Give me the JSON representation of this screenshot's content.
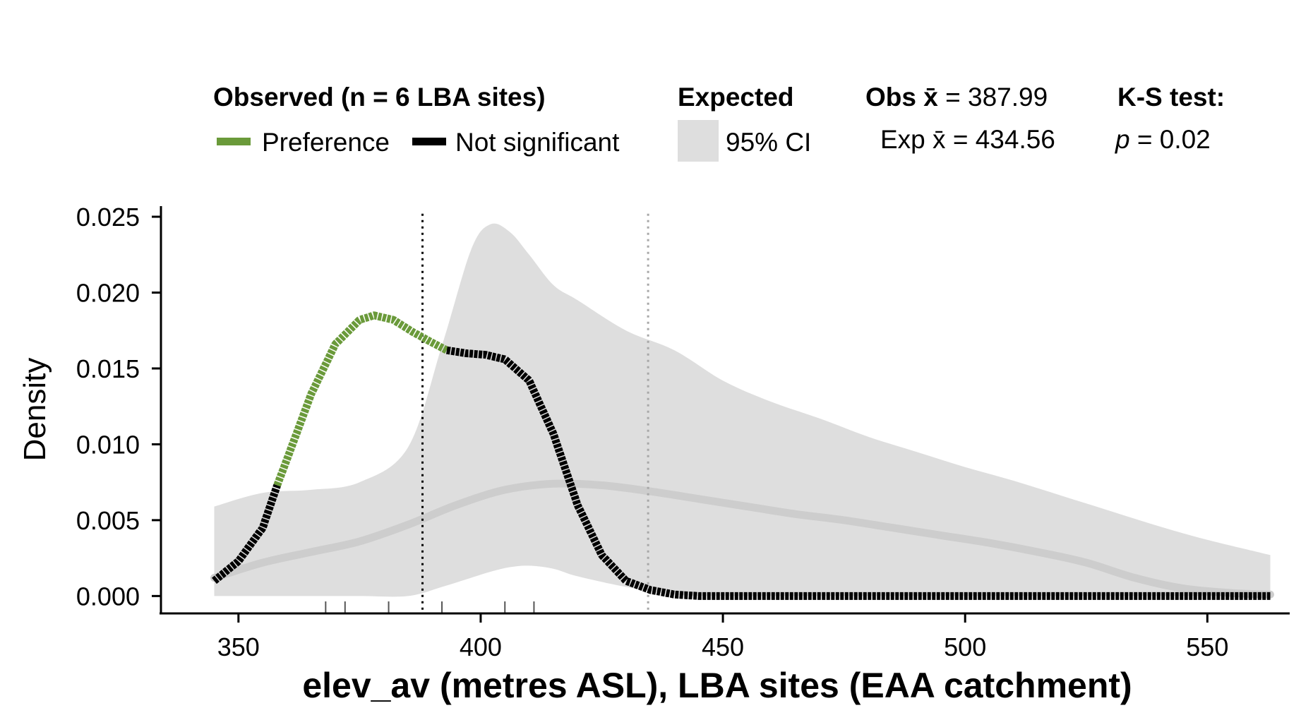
{
  "legend": {
    "observed_title": "Observed (n = 6 LBA sites)",
    "preference_label": "Preference",
    "not_significant_label": "Not significant",
    "expected_title": "Expected",
    "ci_label": "95% CI",
    "obs_mean_prefix": "Obs ",
    "obs_mean_symbol": "x̄",
    "obs_mean_value": " = 387.99",
    "exp_mean_prefix": "Exp ",
    "exp_mean_symbol": "x̄",
    "exp_mean_value": " = 434.56",
    "ks_title": "K-S test:",
    "p_symbol": "p",
    "p_value": " = 0.02"
  },
  "colors": {
    "preference": "#6a9a3a",
    "not_significant": "#000000",
    "ci_fill": "#dedede",
    "expected_line": "#cdcdcd",
    "obs_mean_line": "#000000",
    "exp_mean_line": "#a8a8a8"
  },
  "chart_data": {
    "type": "area",
    "xlabel": "elev_av (metres ASL), LBA sites (EAA catchment)",
    "ylabel": "Density",
    "xlim": [
      334,
      567
    ],
    "ylim": [
      -0.0011,
      0.0257
    ],
    "x_ticks": [
      350,
      400,
      450,
      500,
      550
    ],
    "x_tick_labels": [
      "350",
      "400",
      "450",
      "500",
      "550"
    ],
    "y_ticks": [
      0,
      0.005,
      0.01,
      0.015,
      0.02,
      0.025
    ],
    "y_tick_labels": [
      "0.000",
      "0.005",
      "0.010",
      "0.015",
      "0.020",
      "0.025"
    ],
    "obs_mean": 387.99,
    "exp_mean": 434.56,
    "rug": [
      368,
      372,
      381,
      392,
      405,
      411
    ],
    "ci": {
      "x": [
        345,
        355,
        365,
        375,
        385,
        392,
        398,
        402,
        406,
        410,
        415,
        420,
        430,
        440,
        450,
        460,
        470,
        480,
        490,
        500,
        510,
        520,
        530,
        540,
        550,
        563
      ],
      "upper": [
        0.0059,
        0.0068,
        0.007,
        0.0075,
        0.0098,
        0.0165,
        0.0228,
        0.0245,
        0.024,
        0.0225,
        0.0205,
        0.0195,
        0.0175,
        0.0162,
        0.0142,
        0.0128,
        0.0117,
        0.0105,
        0.0095,
        0.0085,
        0.0076,
        0.0066,
        0.0056,
        0.0046,
        0.0037,
        0.0027
      ],
      "lower": [
        0.0,
        0.0,
        0.0,
        0.0,
        0.0,
        0.0006,
        0.0012,
        0.0016,
        0.0019,
        0.002,
        0.0018,
        0.0013,
        0.0006,
        0.0001,
        0.0,
        0.0,
        0.0,
        0.0,
        0.0,
        0.0,
        0.0,
        0.0,
        0.0,
        0.0,
        0.0,
        0.0
      ]
    },
    "series": [
      {
        "name": "Expected",
        "x": [
          345,
          355,
          365,
          375,
          385,
          395,
          405,
          415,
          425,
          435,
          445,
          455,
          465,
          475,
          485,
          495,
          505,
          515,
          525,
          535,
          545,
          555,
          563
        ],
        "values": [
          0.0012,
          0.0022,
          0.0029,
          0.0036,
          0.0047,
          0.006,
          0.007,
          0.0074,
          0.0073,
          0.0069,
          0.0064,
          0.0059,
          0.0054,
          0.005,
          0.0045,
          0.004,
          0.0035,
          0.0029,
          0.0022,
          0.0012,
          0.0005,
          0.0002,
          0.0001
        ]
      },
      {
        "name": "Observed",
        "x": [
          345,
          350,
          355,
          358,
          360,
          365,
          370,
          375,
          378,
          382,
          386,
          390,
          393,
          397,
          401,
          405,
          410,
          415,
          420,
          425,
          430,
          435,
          440,
          445,
          450,
          455,
          563
        ],
        "values": [
          0.001,
          0.0023,
          0.0045,
          0.0073,
          0.009,
          0.0133,
          0.0166,
          0.0182,
          0.0185,
          0.0182,
          0.0174,
          0.0167,
          0.0162,
          0.016,
          0.0159,
          0.0156,
          0.0142,
          0.0107,
          0.006,
          0.0027,
          0.001,
          0.0004,
          0.0001,
          0.0,
          0.0,
          0.0,
          0.0
        ],
        "preference_ranges": [
          [
            358,
            393
          ]
        ]
      }
    ]
  }
}
